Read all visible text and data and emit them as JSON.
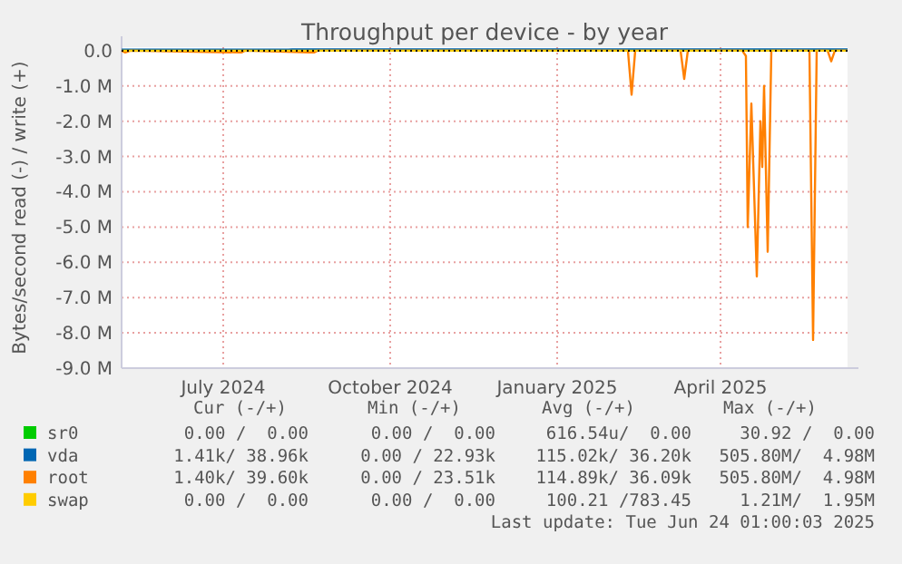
{
  "chart_data": {
    "type": "line",
    "title": "Throughput per device - by year",
    "ylabel": "Bytes/second read (-) / write (+)",
    "xlim": [
      "2024-05-20",
      "2025-06-24"
    ],
    "xticks": [
      {
        "value": "2024-07-15",
        "label": "July 2024"
      },
      {
        "value": "2024-10-15",
        "label": "October 2024"
      },
      {
        "value": "2025-01-15",
        "label": "January 2025"
      },
      {
        "value": "2025-04-15",
        "label": "April 2025"
      }
    ],
    "ylim": [
      -9,
      0.1
    ],
    "yticks": [
      {
        "value": 0,
        "label": "0.0"
      },
      {
        "value": -1,
        "label": "-1.0 M"
      },
      {
        "value": -2,
        "label": "-2.0 M"
      },
      {
        "value": -3,
        "label": "-3.0 M"
      },
      {
        "value": -4,
        "label": "-4.0 M"
      },
      {
        "value": -5,
        "label": "-5.0 M"
      },
      {
        "value": -6,
        "label": "-6.0 M"
      },
      {
        "value": -7,
        "label": "-7.0 M"
      },
      {
        "value": -8,
        "label": "-8.0 M"
      },
      {
        "value": -9,
        "label": "-9.0 M"
      }
    ],
    "grid": true,
    "legend": "bottom",
    "series": [
      {
        "name": "sr0",
        "color": "#00cc00"
      },
      {
        "name": "vda",
        "color": "#0066b3",
        "x": [
          "2024-05-20",
          "2024-08-20",
          "2024-08-22",
          "2025-04-28",
          "2025-05-01",
          "2025-05-10",
          "2025-06-24"
        ],
        "values": [
          0.03,
          0.03,
          0.04,
          0.04,
          0.04,
          0.04,
          0.04
        ]
      },
      {
        "name": "root",
        "color": "#ff8000",
        "x": [
          "2024-05-20",
          "2024-05-22",
          "2024-05-25",
          "2024-07-25",
          "2024-07-27",
          "2024-09-01",
          "2024-09-03",
          "2024-09-05",
          "2025-02-23",
          "2025-02-25",
          "2025-02-27",
          "2025-03-24",
          "2025-03-26",
          "2025-03-28",
          "2025-04-27",
          "2025-04-29",
          "2025-04-30",
          "2025-05-02",
          "2025-05-05",
          "2025-05-07",
          "2025-05-08",
          "2025-05-09",
          "2025-05-11",
          "2025-05-13",
          "2025-06-03",
          "2025-06-05",
          "2025-06-07",
          "2025-06-13",
          "2025-06-15",
          "2025-06-17",
          "2025-06-24"
        ],
        "values": [
          0,
          -0.05,
          0,
          -0.05,
          0,
          -0.05,
          -0.05,
          0,
          0,
          -1.25,
          0,
          0,
          -0.8,
          0,
          0,
          -0.15,
          -5.0,
          -1.5,
          -6.4,
          -2.0,
          -3.3,
          -1.0,
          -5.7,
          0,
          0,
          -8.2,
          0,
          0,
          -0.3,
          0,
          0
        ]
      },
      {
        "name": "swap",
        "color": "#ffcc00",
        "x": [
          "2024-05-20",
          "2025-06-24"
        ],
        "values": [
          0,
          0
        ]
      }
    ],
    "ref_lines": [
      {
        "axis": "y",
        "value": 0,
        "color": "#000000",
        "line_style": "dotted"
      }
    ],
    "annotations": [
      "Cur (-/+)",
      "Min (-/+)",
      "Avg (-/+)",
      "Max (-/+)",
      "0.00 /  0.00",
      "0.00 /  0.00",
      "616.54u/  0.00",
      "30.92 /  0.00",
      "1.41k/ 38.96k",
      "0.00 / 22.93k",
      "115.02k/ 36.20k",
      "505.80M/  4.98M",
      "1.40k/ 39.60k",
      "0.00 / 23.51k",
      "114.89k/ 36.09k",
      "505.80M/  4.98M",
      "0.00 /  0.00",
      "0.00 /  0.00",
      "100.21 /783.45",
      "1.21M/  1.95M",
      "Last update: Tue Jun 24 01:00:03 2025"
    ]
  }
}
